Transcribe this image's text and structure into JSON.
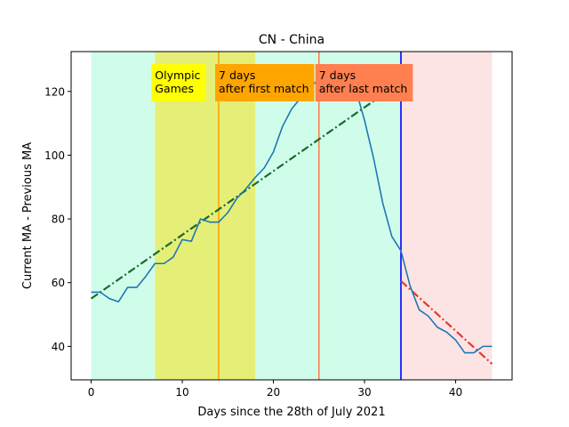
{
  "chart_data": {
    "type": "line",
    "title": "CN - China",
    "xlabel": "Days since the 28th of July 2021",
    "ylabel": "Current MA - Previous MA",
    "xlim": [
      -2.2,
      46.2
    ],
    "ylim": [
      29.5,
      132.5
    ],
    "xticks": [
      0,
      10,
      20,
      30,
      40
    ],
    "yticks": [
      40,
      60,
      80,
      100,
      120
    ],
    "grid": false,
    "series": [
      {
        "color": "#1f77b4",
        "x": [
          0,
          1,
          2,
          3,
          4,
          5,
          6,
          7,
          8,
          9,
          10,
          11,
          12,
          13,
          14,
          15,
          16,
          17,
          18,
          19,
          20,
          21,
          22,
          23,
          24,
          25,
          26,
          27,
          28,
          29,
          30,
          31,
          32,
          33,
          34,
          35,
          36,
          37,
          38,
          39,
          40,
          41,
          42,
          43,
          44
        ],
        "y": [
          57,
          57,
          55,
          54,
          58.5,
          58.5,
          62,
          66,
          66,
          68,
          73.5,
          73,
          80,
          79,
          79,
          82,
          86.5,
          89.5,
          93,
          96,
          101,
          109,
          114.5,
          118,
          121,
          124,
          128,
          128,
          125,
          121,
          111,
          99,
          85,
          74.5,
          70,
          59,
          51.5,
          49.5,
          46,
          44.5,
          42,
          38,
          38,
          40,
          40
        ]
      }
    ],
    "trend_lines": [
      {
        "color": "#1a6a2e",
        "x": [
          0,
          34
        ],
        "y": [
          55,
          123
        ]
      },
      {
        "color": "#e03c2a",
        "x": [
          34,
          44
        ],
        "y": [
          60.5,
          34.5
        ]
      }
    ],
    "spans": [
      {
        "x0": 0,
        "x1": 7,
        "color": "#d0fdea"
      },
      {
        "x0": 7,
        "x1": 18,
        "color": "#e5ef78"
      },
      {
        "x0": 18,
        "x1": 34,
        "color": "#d0fdea"
      },
      {
        "x0": 34,
        "x1": 44,
        "color": "#fde4e4"
      }
    ],
    "vlines": [
      {
        "x": 14,
        "color": "#ffa500"
      },
      {
        "x": 25,
        "color": "#ff7f50"
      },
      {
        "x": 34,
        "color": "#0000ff"
      }
    ],
    "annotations": [
      {
        "x": 7,
        "y": 120,
        "lines": [
          "Olympic",
          "Games"
        ],
        "bg": "#ffff00"
      },
      {
        "x": 14,
        "y": 120,
        "lines": [
          "7 days",
          "after first match"
        ],
        "bg": "#ffa500"
      },
      {
        "x": 25,
        "y": 120,
        "lines": [
          "7 days",
          "after last match"
        ],
        "bg": "#ff7f50"
      }
    ]
  }
}
